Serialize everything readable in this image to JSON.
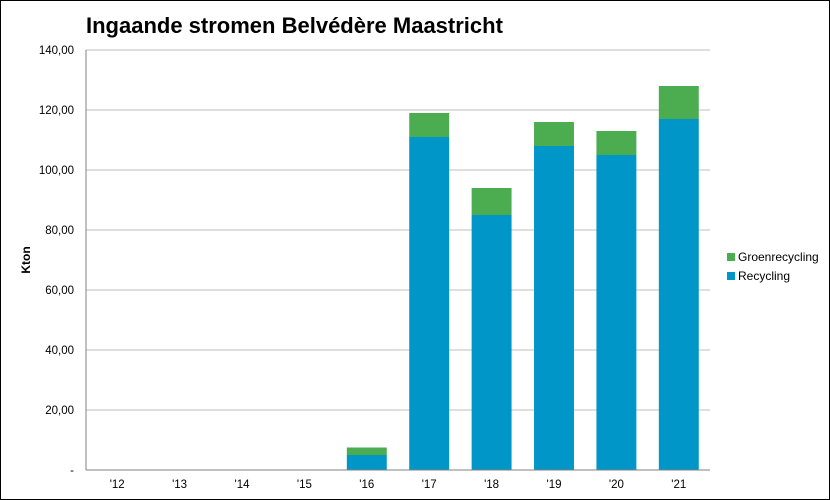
{
  "chart_data": {
    "type": "bar",
    "stacked": true,
    "title": "Ingaande stromen Belvédère Maastricht",
    "xlabel": "",
    "ylabel": "Kton",
    "categories": [
      "'12",
      "'13",
      "'14",
      "'15",
      "'16",
      "'17",
      "'18",
      "'19",
      "'20",
      "'21"
    ],
    "ylim": [
      0,
      140
    ],
    "yticks": [
      "-",
      "20,00",
      "40,00",
      "60,00",
      "80,00",
      "100,00",
      "120,00",
      "140,00"
    ],
    "grid": true,
    "legend_position": "right",
    "series": [
      {
        "name": "Recycling",
        "color": "#0096c8",
        "values": [
          0,
          0,
          0,
          0,
          5,
          111,
          85,
          108,
          105,
          117
        ]
      },
      {
        "name": "Groenrecycling",
        "color": "#4cac50",
        "values": [
          0,
          0,
          0,
          0,
          2.5,
          8,
          9,
          8,
          8,
          11
        ]
      }
    ]
  }
}
